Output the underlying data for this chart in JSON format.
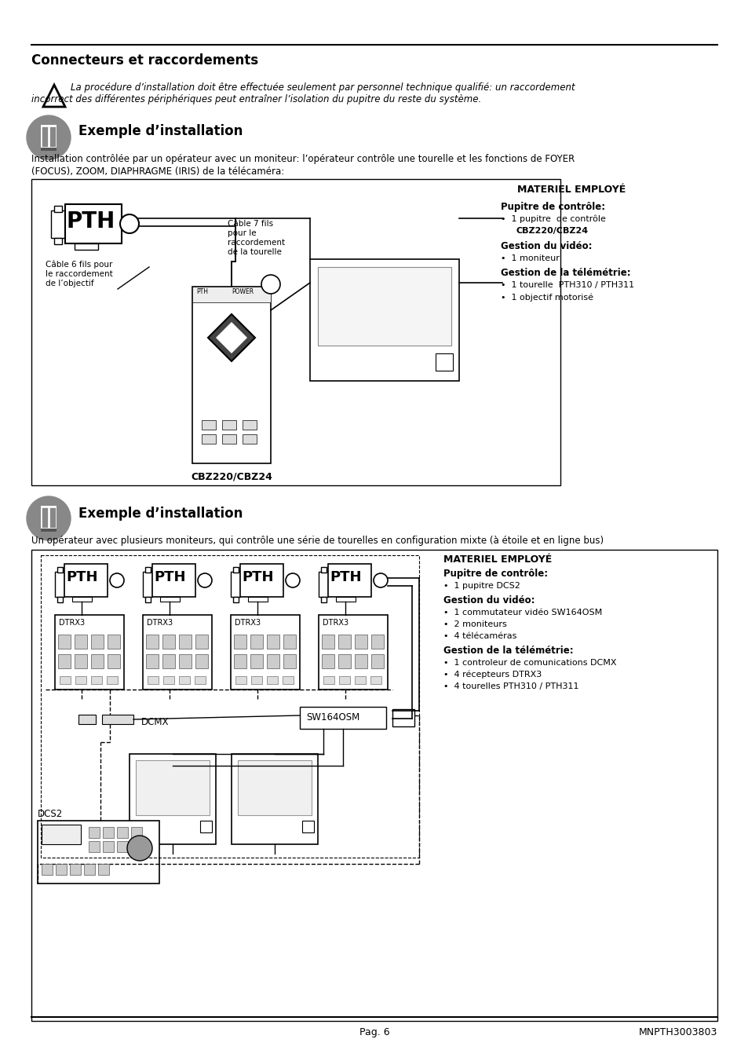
{
  "page_width": 9.54,
  "page_height": 13.51,
  "bg_color": "#ffffff",
  "title": "Connecteurs et raccordements",
  "warning_line1": "La procédure d’installation doit être effectuée seulement par personnel technique qualifié: un raccordement",
  "warning_line2": "incorrect des différentes périphériques peut entraîner l’isolation du pupitre du reste du système.",
  "sec1_title": "Exemple d’installation",
  "sec1_desc1": "Installation contrôlée par un opérateur avec un moniteur: l’opérateur contrôle une tourelle et les fonctions de FOYER",
  "sec1_desc2": "(FOCUS), ZOOM, DIAPHRAGME (IRIS) de la télécaméra:",
  "mat1_title": "MATERIEL EMPLOYÉ",
  "mat1_p1": "Pupitre de contrôle:",
  "mat1_p2": "1 pupitre  de contrôle",
  "mat1_p3": "CBZ220/CBZ24",
  "mat1_v1": "Gestion du vidéo:",
  "mat1_v2": "1 moniteur",
  "mat1_t1": "Gestion de la télémétrie:",
  "mat1_t2": "1 tourelle  PTH310 / PTH311",
  "mat1_t3": "1 objectif motorisé",
  "cbz_label": "CBZ220/CBZ24",
  "cable6_l1": "Câble 6 fils pour",
  "cable6_l2": "le raccordement",
  "cable6_l3": "de l’objectif",
  "cable7_l1": "Câble 7 fils",
  "cable7_l2": "pour le",
  "cable7_l3": "raccordement",
  "cable7_l4": "de la tourelle",
  "sec2_title": "Exemple d’installation",
  "sec2_desc": "Un opérateur avec plusieurs moniteurs, qui contrôle une série de tourelles en configuration mixte (à étoile et en ligne bus)",
  "mat2_title": "MATERIEL EMPLOYÉ",
  "mat2_p1": "Pupitre de contrôle:",
  "mat2_p2": "1 pupitre DCS2",
  "mat2_v1": "Gestion du vidéo:",
  "mat2_v2": "1 commutateur vidéo SW164OSM",
  "mat2_v3": "2 moniteurs",
  "mat2_v4": "4 télécaméras",
  "mat2_t1": "Gestion de la télémétrie:",
  "mat2_t2": "1 controleur de comunications DCMX",
  "mat2_t3": "4 récepteurs DTRX3",
  "mat2_t4": "4 tourelles PTH310 / PTH311",
  "footer_left": "Pag. 6",
  "footer_right": "MNPTH3003803"
}
